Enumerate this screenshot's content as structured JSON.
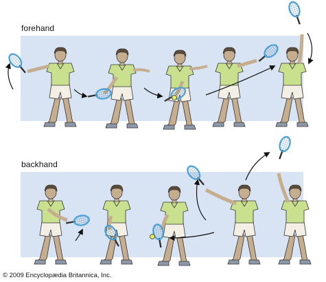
{
  "rows": [
    {
      "label": "forehand"
    },
    {
      "label": "backhand"
    }
  ],
  "copyright": "© 2009 Encyclopædia Britannica, Inc.",
  "colors": {
    "band": "#d8e3f3",
    "shirt": "#c9e08f",
    "shorts": "#f3efe4",
    "skin": "#c6ad8e",
    "hair": "#5a4a3a",
    "racket": "#4aa0d8",
    "ball": "#e3ea58",
    "arrow": "#111111"
  }
}
